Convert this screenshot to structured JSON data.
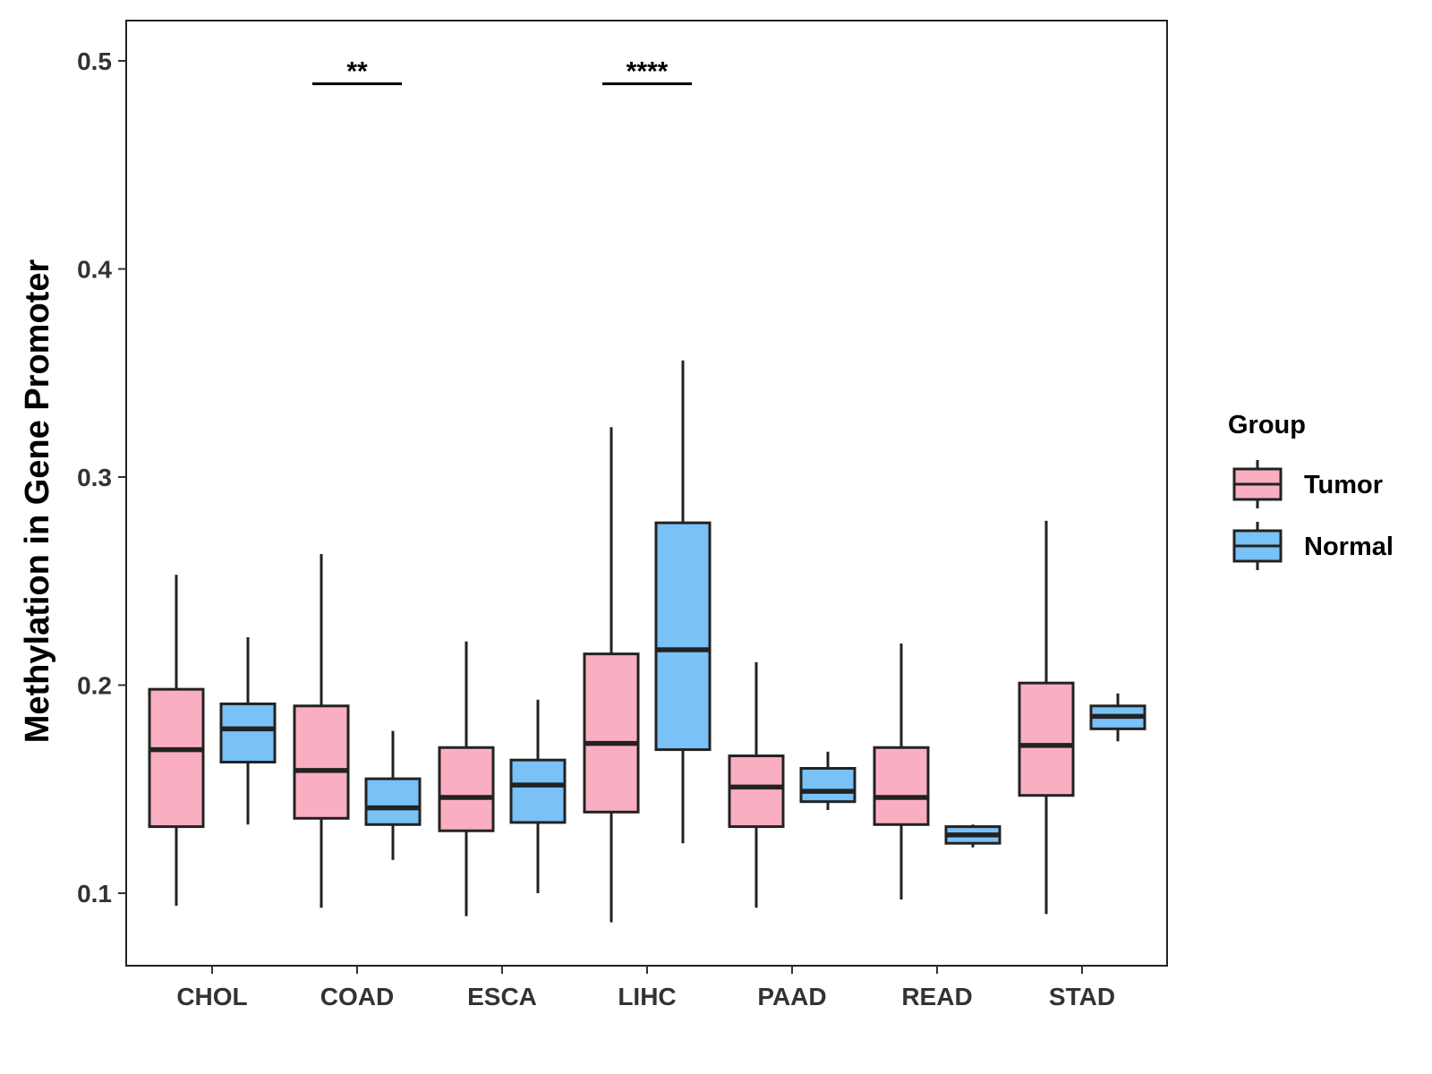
{
  "chart_data": {
    "type": "boxplot",
    "title": "",
    "xlabel": "",
    "ylabel": "Methylation in Gene Promoter",
    "ylim": [
      0.065,
      0.52
    ],
    "yticks": [
      0.1,
      0.2,
      0.3,
      0.4,
      0.5
    ],
    "ytick_labels": [
      "0.1",
      "0.2",
      "0.3",
      "0.4",
      "0.5"
    ],
    "categories": [
      "CHOL",
      "COAD",
      "ESCA",
      "LIHC",
      "PAAD",
      "READ",
      "STAD"
    ],
    "legend": {
      "title": "Group",
      "position": "right",
      "entries": [
        {
          "name": "Tumor",
          "color": "#F9AFC1"
        },
        {
          "name": "Normal",
          "color": "#79C1F7"
        }
      ]
    },
    "series": [
      {
        "name": "Tumor",
        "color": "#F9AFC1",
        "boxes": [
          {
            "category": "CHOL",
            "min": 0.094,
            "q1": 0.132,
            "median": 0.169,
            "q3": 0.198,
            "max": 0.253
          },
          {
            "category": "COAD",
            "min": 0.093,
            "q1": 0.136,
            "median": 0.159,
            "q3": 0.19,
            "max": 0.263
          },
          {
            "category": "ESCA",
            "min": 0.089,
            "q1": 0.13,
            "median": 0.146,
            "q3": 0.17,
            "max": 0.221
          },
          {
            "category": "LIHC",
            "min": 0.086,
            "q1": 0.139,
            "median": 0.172,
            "q3": 0.215,
            "max": 0.324
          },
          {
            "category": "PAAD",
            "min": 0.093,
            "q1": 0.132,
            "median": 0.151,
            "q3": 0.166,
            "max": 0.211
          },
          {
            "category": "READ",
            "min": 0.097,
            "q1": 0.133,
            "median": 0.146,
            "q3": 0.17,
            "max": 0.22
          },
          {
            "category": "STAD",
            "min": 0.09,
            "q1": 0.147,
            "median": 0.171,
            "q3": 0.201,
            "max": 0.279
          }
        ]
      },
      {
        "name": "Normal",
        "color": "#79C1F7",
        "boxes": [
          {
            "category": "CHOL",
            "min": 0.133,
            "q1": 0.163,
            "median": 0.179,
            "q3": 0.191,
            "max": 0.223
          },
          {
            "category": "COAD",
            "min": 0.116,
            "q1": 0.133,
            "median": 0.141,
            "q3": 0.155,
            "max": 0.178
          },
          {
            "category": "ESCA",
            "min": 0.1,
            "q1": 0.134,
            "median": 0.152,
            "q3": 0.164,
            "max": 0.193
          },
          {
            "category": "LIHC",
            "min": 0.124,
            "q1": 0.169,
            "median": 0.217,
            "q3": 0.278,
            "max": 0.356
          },
          {
            "category": "PAAD",
            "min": 0.14,
            "q1": 0.144,
            "median": 0.149,
            "q3": 0.16,
            "max": 0.168
          },
          {
            "category": "READ",
            "min": 0.122,
            "q1": 0.124,
            "median": 0.128,
            "q3": 0.132,
            "max": 0.133
          },
          {
            "category": "STAD",
            "min": 0.173,
            "q1": 0.179,
            "median": 0.185,
            "q3": 0.19,
            "max": 0.196
          }
        ]
      }
    ],
    "annotations": [
      {
        "category": "COAD",
        "label": "**",
        "y": 0.489
      },
      {
        "category": "LIHC",
        "label": "****",
        "y": 0.489
      }
    ]
  }
}
